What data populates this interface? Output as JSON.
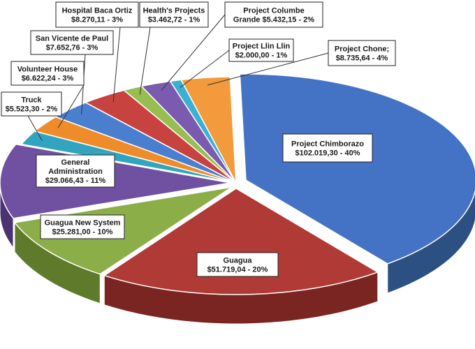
{
  "chart_data": {
    "type": "pie",
    "title": "",
    "slices": [
      {
        "label": "Project Chimborazo",
        "value_text": "$102.019,30 - 40%",
        "value": 102019.3,
        "percent": 40,
        "color": "#4472c4",
        "side": "#2c5081"
      },
      {
        "label": "Guagua",
        "value_text": "$51.719,04 - 20%",
        "value": 51719.04,
        "percent": 20,
        "color": "#b03a35",
        "side": "#7a2522"
      },
      {
        "label": "Guagua New System",
        "value_text": "$25.281,00 - 10%",
        "value": 25281.0,
        "percent": 10,
        "color": "#8cae48",
        "side": "#5e7a2a"
      },
      {
        "label": "General Administration",
        "value_text": "$29.066,43 - 11%",
        "value": 29066.43,
        "percent": 11,
        "color": "#7050a0",
        "side": "#4a3370"
      },
      {
        "label": "Truck",
        "value_text": "$5.523,30 - 2%",
        "value": 5523.3,
        "percent": 2,
        "color": "#31a4c0",
        "side": "#1d6d80"
      },
      {
        "label": "Volunteer House",
        "value_text": "$6.622,24 - 3%",
        "value": 6622.24,
        "percent": 3,
        "color": "#ef8c2a",
        "side": "#a65e15"
      },
      {
        "label": "San Vicente de Paul",
        "value_text": "$7.652,76 - 3%",
        "value": 7652.76,
        "percent": 3,
        "color": "#4a7fd0",
        "side": "#2e5590"
      },
      {
        "label": "Hospital Baca Ortiz",
        "value_text": "$8.270,11 - 3%",
        "value": 8270.11,
        "percent": 3,
        "color": "#c8433f",
        "side": "#8a2c2a"
      },
      {
        "label": "Health's Projects",
        "value_text": "$3.462,72 - 1%",
        "value": 3462.72,
        "percent": 1,
        "color": "#96be50",
        "side": "#688536"
      },
      {
        "label": "Project Columbe Grande",
        "value_text": "$5.432,15 - 2%",
        "value": 5432.15,
        "percent": 2,
        "color": "#7a5bb0",
        "side": "#523c78"
      },
      {
        "label": "Project Llin Llin",
        "value_text": "$2.000,00 - 1%",
        "value": 2000.0,
        "percent": 1,
        "color": "#3bb0d0",
        "side": "#25788f"
      },
      {
        "label": "Project Chone;",
        "value_text": "$8.735,64 - 4%",
        "value": 8735.64,
        "percent": 4,
        "color": "#f39a3c",
        "side": "#b06a1f"
      }
    ]
  }
}
